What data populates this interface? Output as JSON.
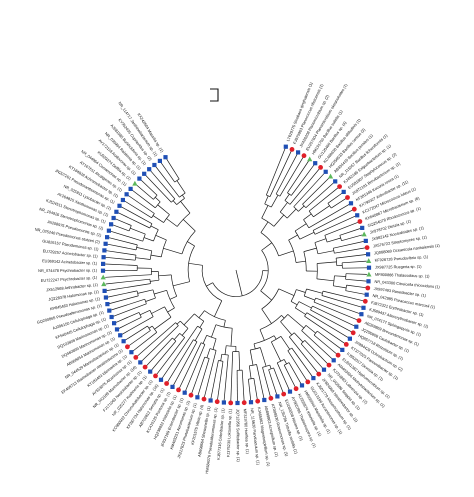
{
  "figure": {
    "type": "circular-phylogenetic-tree",
    "colors": {
      "branch": "#1a1a1a",
      "label": "#111111",
      "marker_red": "#e0202a",
      "marker_blue": "#1f4fb5",
      "marker_green": "#5cb85c"
    },
    "leaves": [
      {
        "label": "LT629775 Sinobaca qinghaiensis (1)",
        "marker": "blue"
      },
      {
        "label": "FJ975963 Planococcus rifietoensis (1)",
        "marker": "red"
      },
      {
        "label": "JX426208 Planomicrobium sp. (2)",
        "marker": "blue"
      },
      {
        "label": "EU257604 Planomicrobium okeanokoites (1)",
        "marker": "red"
      },
      {
        "label": "HM191700 Bacillus subtilis (1)",
        "marker": "green"
      },
      {
        "label": "GU126460 Bacillus sp. (4)",
        "marker": "blue"
      },
      {
        "label": "KC469630 Bacillus altitudinis (1)",
        "marker": "red"
      },
      {
        "label": "HQ256533 Bacillus cereus (3)",
        "marker": "blue"
      },
      {
        "label": "AB934419 Bacillus pumilus (1)",
        "marker": "green"
      },
      {
        "label": "NR_115057 Bacillus licheniformis (1)",
        "marker": "blue"
      },
      {
        "label": "KJ452185 Exiguobacterium sp. (1)",
        "marker": "red"
      },
      {
        "label": "EU581807 Staphylococcus sp. (2)",
        "marker": "blue"
      },
      {
        "label": "JX872191 Brevibacterium sp. (1)",
        "marker": "red"
      },
      {
        "label": "KF381346 Kocuria rosea (1)",
        "marker": "blue"
      },
      {
        "label": "KX790327 Arthrobacter sp. (11)",
        "marker": "red"
      },
      {
        "label": "KC172047 Micrococcus luteus (1)",
        "marker": "blue"
      },
      {
        "label": "KX640867 Microbacterium sp. (6)",
        "marker": "red"
      },
      {
        "label": "GQ254078 Rhodococcus sp. (1)",
        "marker": "blue"
      },
      {
        "label": "JX978702 Dietzia sp. (1)",
        "marker": "green"
      },
      {
        "label": "JX982142 Nocardioides sp. (1)",
        "marker": "blue"
      },
      {
        "label": "JX576722 Streptomyces sp. (1)",
        "marker": "red"
      },
      {
        "label": "JQ088069 Oceanicola nanhaiensis (1)",
        "marker": "blue"
      },
      {
        "label": "KF928728 Pseudovibrio sp. (1)",
        "marker": "green"
      },
      {
        "label": "JX987725 Ruegeria sp. (1)",
        "marker": "blue"
      },
      {
        "label": "MF800866 Thalassobius sp. (1)",
        "marker": "green"
      },
      {
        "label": "NR_043300 Citreicella thiooxidans (1)",
        "marker": "blue"
      },
      {
        "label": "JX997493 Roseobacter sp. (1)",
        "marker": "red"
      },
      {
        "label": "NR_042985 Paracoccus marcusii (1)",
        "marker": "blue"
      },
      {
        "label": "FJ872321 Erythrobacter sp. (1)",
        "marker": "red"
      },
      {
        "label": "KJ589437 Altererythrobacter sp. (1)",
        "marker": "blue"
      },
      {
        "label": "NR_074177 Sphingopyxis sp. (1)",
        "marker": "blue"
      },
      {
        "label": "AB269869 Brevundimonas sp. (1)",
        "marker": "red"
      },
      {
        "label": "JQ290808 Caulobacter sp. (1)",
        "marker": "blue"
      },
      {
        "label": "HQ857718 Rhizobium sp. (1)",
        "marker": "red"
      },
      {
        "label": "JX994428 Ochrobactrum sp. (2)",
        "marker": "blue"
      },
      {
        "label": "KT377025 Pannonibacter sp. (1)",
        "marker": "red"
      },
      {
        "label": "FJ952017 Devosia sp. (1)",
        "marker": "blue"
      },
      {
        "label": "EU541382 Hyphomicrobium sp. (1)",
        "marker": "red"
      },
      {
        "label": "AM403666 Methylobacterium sp. (1)",
        "marker": "blue"
      },
      {
        "label": "KJ734883 Labrenzia sp. (2)",
        "marker": "red"
      },
      {
        "label": "NR_042596 Stappia sp. (1)",
        "marker": "blue"
      },
      {
        "label": "JF824969 Nitratireductor sp. (1)",
        "marker": "red"
      },
      {
        "label": "KJ601779 Mesorhizobium sp. (1)",
        "marker": "blue"
      },
      {
        "label": "GU213196 Aurantimonas sp. (1)",
        "marker": "red"
      },
      {
        "label": "HM036644 Martelella sp. (1)",
        "marker": "blue"
      },
      {
        "label": "KU559874 Kiloniella sp. (1)",
        "marker": "red"
      },
      {
        "label": "AY965785 Thalassospira sp. (1)",
        "marker": "blue"
      },
      {
        "label": "EU169208 Nisaea sp. (1)",
        "marker": "red"
      },
      {
        "label": "NR_135786 Tistrella mobilis (1)",
        "marker": "blue"
      },
      {
        "label": "KT008930 Roseomonas sp. (1)",
        "marker": "red"
      },
      {
        "label": "AB899863 Azospirillum sp. (1)",
        "marker": "blue"
      },
      {
        "label": "KJ465962 Magnetospirillum sp. (1)",
        "marker": "red"
      },
      {
        "label": "NR_115620 Parvibaculum sp. (1)",
        "marker": "blue"
      },
      {
        "label": "MF319780 Hoeflea sp. (1)",
        "marker": "red"
      },
      {
        "label": "JQ712956 Sulfitobacter sp. (1)",
        "marker": "blue"
      },
      {
        "label": "FJ375230 Loktanella sp. (1)",
        "marker": "red"
      },
      {
        "label": "KJ877316 Celeribacter sp. (1)",
        "marker": "blue"
      },
      {
        "label": "HM584076 Pseudoalteromonas sp. (1)",
        "marker": "red"
      },
      {
        "label": "AB698664 Shewanella sp. (1)",
        "marker": "blue"
      },
      {
        "label": "KF201575 Vibrio sp. (4)",
        "marker": "red"
      },
      {
        "label": "JX217823 Photobacterium sp. (1)",
        "marker": "blue"
      },
      {
        "label": "KM403251 Aeromonas sp. (1)",
        "marker": "red"
      },
      {
        "label": "JF837169 Enterobacter sp. (1)",
        "marker": "blue"
      },
      {
        "label": "HQ238822 Klebsiella sp. (1)",
        "marker": "red"
      },
      {
        "label": "KC415125 Pantoea sp. (1)",
        "marker": "blue"
      },
      {
        "label": "AB702812 Serratia sp. (1)",
        "marker": "red"
      },
      {
        "label": "KF387734 Halomonas sp. (16)",
        "marker": "blue"
      },
      {
        "label": "KC860922 Chromohalobacter sp. (1)",
        "marker": "red"
      },
      {
        "label": "NR_025277 Kushneria sp. (1)",
        "marker": "blue"
      },
      {
        "label": "FJ171063 Nesiotobacter sp. (1)",
        "marker": "red"
      },
      {
        "label": "NR_042189 Marinobacter sp. (16)",
        "marker": "blue"
      },
      {
        "label": "AY553076 Alcanivorax sp. (1)",
        "marker": "red"
      },
      {
        "label": "KT183493 Idiomarina sp. (1)",
        "marker": "blue"
      },
      {
        "label": "EF468713 Marinobacter nitratireducens (1)",
        "marker": "red"
      },
      {
        "label": "NR_044529 Marinobacterium sp. (1)",
        "marker": "blue"
      },
      {
        "label": "AB668054 Marinomonas sp. (1)",
        "marker": "blue"
      },
      {
        "label": "DQ460899 Marinomonas sp. (1)",
        "marker": "blue"
      },
      {
        "label": "DQ103808 Marinomonas sp. (1)",
        "marker": "blue"
      },
      {
        "label": "KF540445 Cellulophaga sp. (1)",
        "marker": "blue"
      },
      {
        "label": "AJ296150 Cellulophaga sp. (1)",
        "marker": "blue"
      },
      {
        "label": "GQ200865 Pseudoalteromonas sp. (1)",
        "marker": "blue"
      },
      {
        "label": "KP845463 Halomonas sp. (1)",
        "marker": "blue"
      },
      {
        "label": "JQ228378 Halomonas sp. (1)",
        "marker": "blue"
      },
      {
        "label": "JX512568 Arthrobacter sp. (1)",
        "marker": "green"
      },
      {
        "label": "EU722247 Psychrobacter sp. (1)",
        "marker": "green"
      },
      {
        "label": "NR_074478 Psychrobacter sp. (1)",
        "marker": "blue"
      },
      {
        "label": "EU369142 Acinetobacter sp. (1)",
        "marker": "blue"
      },
      {
        "label": "EU729257 Acinetobacter sp. (1)",
        "marker": "blue"
      },
      {
        "label": "GU826157 Pseudomonas sp. (1)",
        "marker": "blue"
      },
      {
        "label": "NR_025240 Pseudomonas stutzeri (2)",
        "marker": "blue"
      },
      {
        "label": "JN208975 Pseudomonas sp. (1)",
        "marker": "blue"
      },
      {
        "label": "NR_104926 Stenotrophomonas sp. (1)",
        "marker": "blue"
      },
      {
        "label": "KJ524511 Stenotrophomonas sp. (1)",
        "marker": "blue"
      },
      {
        "label": "AY264815 Xanthomonas sp. (1)",
        "marker": "blue"
      },
      {
        "label": "NR_025911 Lysobacter sp. (1)",
        "marker": "blue"
      },
      {
        "label": "JN207201 Pseudoxanthomonas sp. (1)",
        "marker": "blue"
      },
      {
        "label": "KT184928 Achromobacter sp. (1)",
        "marker": "blue"
      },
      {
        "label": "AY167611 Alcaligenes sp. (1)",
        "marker": "blue"
      },
      {
        "label": "NR_044964 Comamonas sp. (1)",
        "marker": "blue"
      },
      {
        "label": "KU529274 Delftia sp. (1)",
        "marker": "green"
      },
      {
        "label": "AY172118 Acidovorax sp. (1)",
        "marker": "blue"
      },
      {
        "label": "NR_036964 Ralstonia sp. (1)",
        "marker": "blue"
      },
      {
        "label": "AJ581585 Burkholderia sp. (1)",
        "marker": "blue"
      },
      {
        "label": "KY352435 Cupriavidus sp. (2)",
        "marker": "blue"
      },
      {
        "label": "NR_114717 Janthinobacterium sp. (1)",
        "marker": "blue"
      },
      {
        "label": "KX242604 Massilia sp. (1)",
        "marker": "blue"
      }
    ]
  }
}
